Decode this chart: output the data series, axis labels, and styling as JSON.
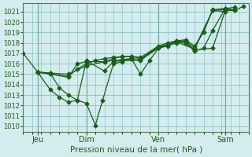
{
  "xlabel": "Pression niveau de la mer( hPa )",
  "bg_color": "#d4ecee",
  "grid_color": "#7bb8bc",
  "line_color": "#1a5e1a",
  "vline_color": "#4a7a4a",
  "ylim": [
    1009.5,
    1021.8
  ],
  "xlim": [
    0.0,
    12.5
  ],
  "yticks": [
    1010,
    1011,
    1012,
    1013,
    1014,
    1015,
    1016,
    1017,
    1018,
    1019,
    1020,
    1021
  ],
  "xtick_positions": [
    0.8,
    3.5,
    7.5,
    11.2
  ],
  "xtick_labels": [
    "Jeu",
    "Dim",
    "Ven",
    "Sam"
  ],
  "vlines": [
    0.8,
    3.5,
    7.5,
    11.2
  ],
  "lines": [
    {
      "x": [
        0.0,
        0.8,
        1.5,
        2.0,
        2.5,
        3.0,
        3.5,
        4.0,
        4.4,
        5.0,
        5.5,
        6.0,
        6.5,
        7.0,
        7.5,
        8.0,
        8.5,
        9.0,
        9.5,
        10.0,
        10.5,
        11.2,
        11.7,
        12.2
      ],
      "y": [
        1017.0,
        1015.2,
        1015.1,
        1013.7,
        1013.0,
        1012.5,
        1012.2,
        1010.1,
        1012.5,
        1016.0,
        1016.2,
        1016.5,
        1015.0,
        1016.3,
        1017.5,
        1017.8,
        1018.2,
        1018.0,
        1017.2,
        1017.5,
        1019.2,
        1021.3,
        1021.1,
        1021.5
      ],
      "marker": "D",
      "ms": 2.5
    },
    {
      "x": [
        0.8,
        1.5,
        2.5,
        3.5,
        4.5,
        5.0,
        5.5,
        6.0,
        6.5,
        7.5,
        8.0,
        8.5,
        9.0,
        9.5,
        10.5,
        11.2,
        11.7
      ],
      "y": [
        1015.2,
        1015.1,
        1015.0,
        1015.8,
        1016.2,
        1016.3,
        1016.4,
        1016.5,
        1016.4,
        1017.5,
        1017.7,
        1018.0,
        1018.1,
        1017.3,
        1017.5,
        1021.1,
        1021.1
      ],
      "marker": "D",
      "ms": 2.5
    },
    {
      "x": [
        0.8,
        1.5,
        2.5,
        3.0,
        3.5,
        4.0,
        4.5,
        5.0,
        5.5,
        6.0,
        6.5,
        7.5,
        8.0,
        8.5,
        9.0,
        9.5,
        10.5,
        11.2,
        11.7
      ],
      "y": [
        1015.2,
        1015.0,
        1014.8,
        1015.5,
        1016.0,
        1016.3,
        1016.5,
        1016.6,
        1016.7,
        1016.7,
        1016.5,
        1017.6,
        1017.8,
        1018.1,
        1018.2,
        1017.5,
        1021.1,
        1021.2,
        1021.2
      ],
      "marker": "D",
      "ms": 2.5
    },
    {
      "x": [
        0.8,
        1.5,
        2.5,
        3.0,
        3.5,
        4.5,
        5.0,
        5.5,
        6.0,
        6.5,
        7.5,
        8.0,
        8.5,
        9.0,
        9.5,
        10.0,
        10.5,
        11.2,
        11.7
      ],
      "y": [
        1015.2,
        1015.0,
        1014.7,
        1016.0,
        1016.2,
        1016.2,
        1016.5,
        1016.7,
        1016.7,
        1016.6,
        1017.7,
        1018.0,
        1018.2,
        1018.3,
        1017.7,
        1019.0,
        1021.2,
        1021.3,
        1021.4
      ],
      "marker": "D",
      "ms": 2.5
    },
    {
      "x": [
        0.8,
        1.5,
        2.0,
        2.5,
        3.0,
        3.5,
        4.5,
        5.0,
        5.5,
        6.5,
        7.5,
        8.5,
        9.5,
        10.5,
        11.2
      ],
      "y": [
        1015.2,
        1013.5,
        1012.8,
        1012.3,
        1012.5,
        1016.3,
        1015.3,
        1016.2,
        1016.3,
        1016.3,
        1017.6,
        1018.1,
        1017.4,
        1021.1,
        1021.0
      ],
      "marker": "D",
      "ms": 2.5
    }
  ]
}
